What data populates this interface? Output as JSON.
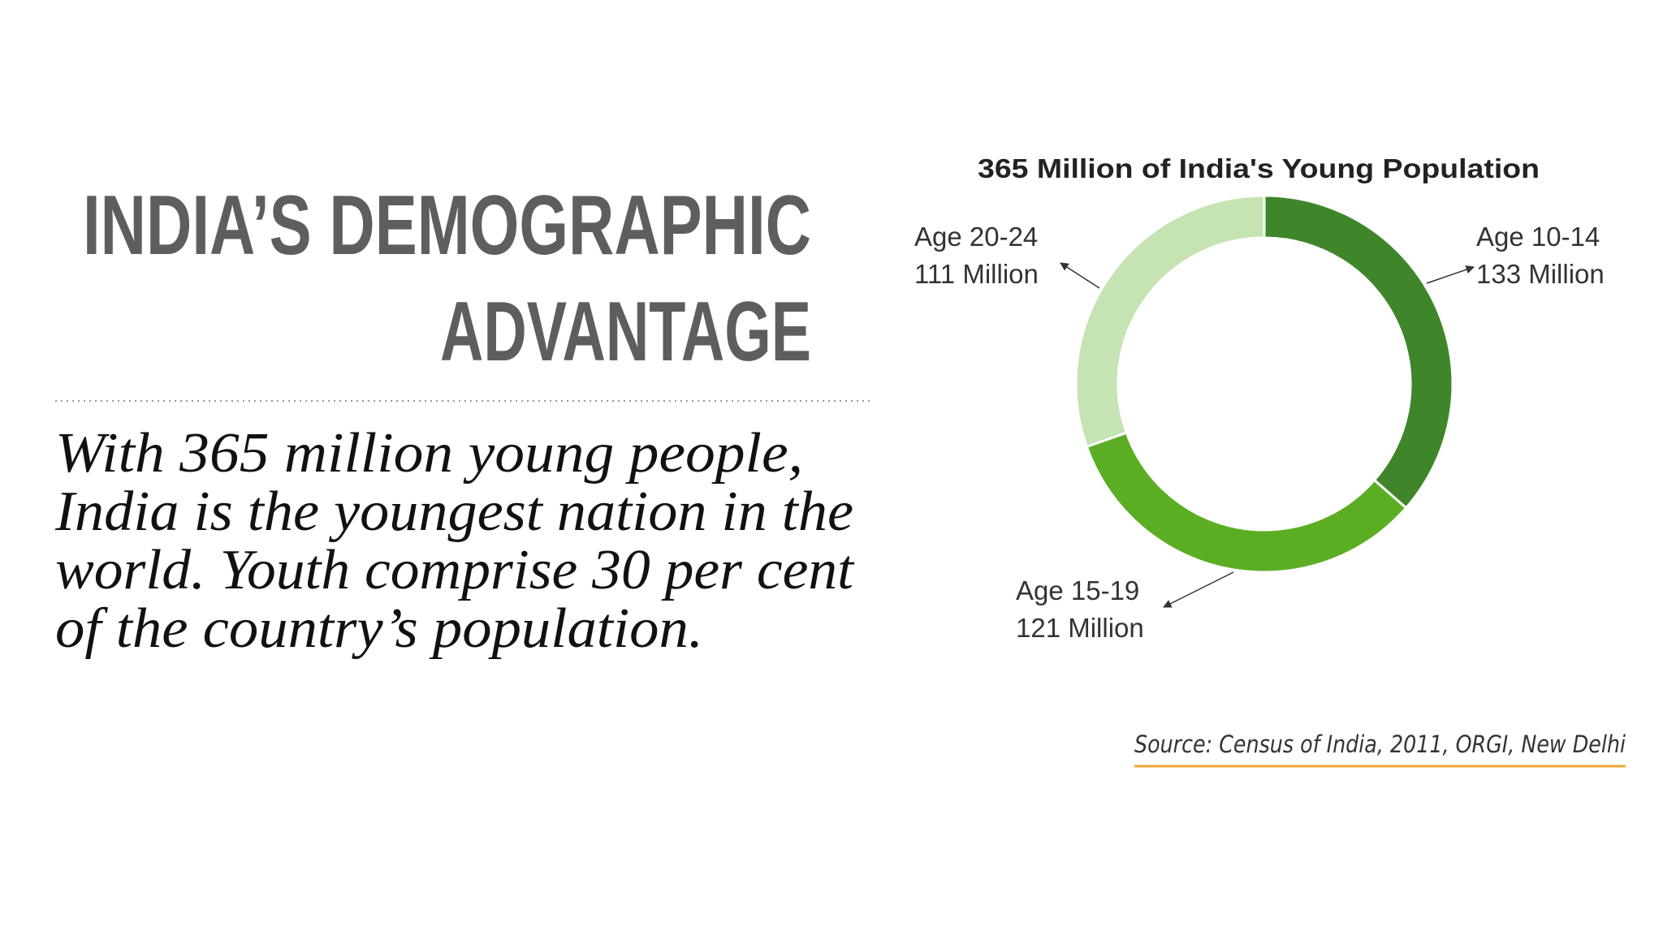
{
  "slide": {
    "title_lines": [
      "INDIA’S DEMOGRAPHIC",
      "ADVANTAGE"
    ],
    "body_lines": [
      "With 365 million young people,",
      "India is the youngest nation in the",
      "world. Youth comprise 30 per cent",
      "of the country’s population."
    ],
    "source": "Source: Census of India, 2011, ORGI, New Delhi"
  },
  "chart_data": {
    "type": "donut",
    "title": "365 Million of India's Young Population",
    "categories": [
      "Age 10-14",
      "Age 15-19",
      "Age 20-24"
    ],
    "values": [
      133,
      121,
      111
    ],
    "value_labels": [
      "133 Million",
      "121 Million",
      "111 Million"
    ],
    "colors": [
      "#3f862b",
      "#5bae24",
      "#c6e3b4"
    ]
  }
}
